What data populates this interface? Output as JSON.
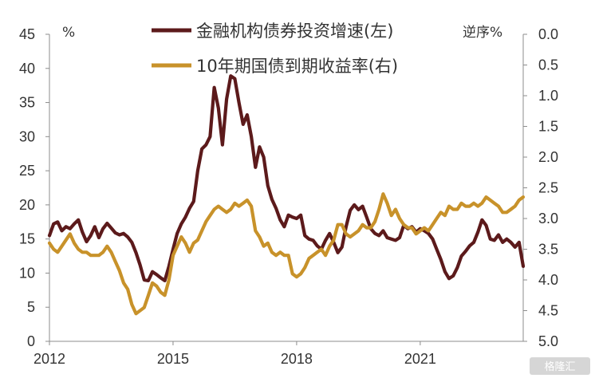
{
  "chart_data": {
    "type": "line",
    "x_ticks": [
      "2012",
      "2015",
      "2018",
      "2021"
    ],
    "x_range": [
      2012.0,
      2023.5
    ],
    "left_axis": {
      "unit_label": "%",
      "min": 0,
      "max": 45,
      "ticks": [
        "45",
        "40",
        "35",
        "30",
        "25",
        "20",
        "15",
        "10",
        "5",
        "0"
      ]
    },
    "right_axis": {
      "unit_label": "逆序%",
      "inverted": true,
      "min": 0.0,
      "max": 5.0,
      "ticks": [
        "0.0",
        "0.5",
        "1.0",
        "1.5",
        "2.0",
        "2.5",
        "3.0",
        "3.5",
        "4.0",
        "4.5",
        "5.0"
      ]
    },
    "legend": [
      {
        "label": "金融机构债券投资增速(左)",
        "color": "#5c1a1b"
      },
      {
        "label": "10年期国债到期收益率(右)",
        "color": "#c8922a"
      }
    ],
    "series": [
      {
        "name": "金融机构债券投资增速(左)",
        "axis": "left",
        "color": "#5c1a1b",
        "points": [
          [
            2012.0,
            15.5
          ],
          [
            2012.1,
            17.2
          ],
          [
            2012.2,
            17.5
          ],
          [
            2012.3,
            16.2
          ],
          [
            2012.4,
            16.8
          ],
          [
            2012.5,
            16.5
          ],
          [
            2012.6,
            17.2
          ],
          [
            2012.7,
            17.8
          ],
          [
            2012.8,
            16.0
          ],
          [
            2012.9,
            14.6
          ],
          [
            2013.0,
            15.5
          ],
          [
            2013.1,
            16.8
          ],
          [
            2013.2,
            15.2
          ],
          [
            2013.3,
            16.5
          ],
          [
            2013.4,
            17.3
          ],
          [
            2013.5,
            16.6
          ],
          [
            2013.6,
            15.9
          ],
          [
            2013.7,
            15.6
          ],
          [
            2013.8,
            15.8
          ],
          [
            2013.9,
            15.3
          ],
          [
            2014.0,
            14.5
          ],
          [
            2014.1,
            13.0
          ],
          [
            2014.2,
            11.2
          ],
          [
            2014.3,
            9.0
          ],
          [
            2014.4,
            8.9
          ],
          [
            2014.5,
            10.2
          ],
          [
            2014.6,
            9.8
          ],
          [
            2014.7,
            9.3
          ],
          [
            2014.8,
            8.9
          ],
          [
            2014.9,
            11.0
          ],
          [
            2015.0,
            13.5
          ],
          [
            2015.1,
            15.8
          ],
          [
            2015.2,
            17.2
          ],
          [
            2015.3,
            18.2
          ],
          [
            2015.4,
            19.5
          ],
          [
            2015.5,
            20.5
          ],
          [
            2015.6,
            25.0
          ],
          [
            2015.7,
            28.2
          ],
          [
            2015.8,
            28.8
          ],
          [
            2015.9,
            30.0
          ],
          [
            2016.0,
            37.2
          ],
          [
            2016.1,
            34.2
          ],
          [
            2016.2,
            28.8
          ],
          [
            2016.3,
            35.5
          ],
          [
            2016.4,
            38.9
          ],
          [
            2016.5,
            38.5
          ],
          [
            2016.6,
            35.0
          ],
          [
            2016.7,
            31.8
          ],
          [
            2016.8,
            33.2
          ],
          [
            2016.9,
            30.0
          ],
          [
            2017.0,
            25.5
          ],
          [
            2017.1,
            28.5
          ],
          [
            2017.2,
            27.0
          ],
          [
            2017.3,
            22.8
          ],
          [
            2017.4,
            20.8
          ],
          [
            2017.5,
            19.5
          ],
          [
            2017.6,
            17.8
          ],
          [
            2017.7,
            16.8
          ],
          [
            2017.8,
            18.5
          ],
          [
            2017.9,
            18.2
          ],
          [
            2018.0,
            18.0
          ],
          [
            2018.1,
            18.5
          ],
          [
            2018.2,
            15.5
          ],
          [
            2018.3,
            15.0
          ],
          [
            2018.4,
            14.8
          ],
          [
            2018.5,
            14.0
          ],
          [
            2018.6,
            13.5
          ],
          [
            2018.7,
            14.8
          ],
          [
            2018.8,
            15.8
          ],
          [
            2018.9,
            14.5
          ],
          [
            2019.0,
            13.0
          ],
          [
            2019.1,
            13.8
          ],
          [
            2019.2,
            16.8
          ],
          [
            2019.3,
            19.2
          ],
          [
            2019.4,
            20.0
          ],
          [
            2019.5,
            19.3
          ],
          [
            2019.6,
            19.8
          ],
          [
            2019.7,
            18.2
          ],
          [
            2019.8,
            16.5
          ],
          [
            2019.9,
            15.8
          ],
          [
            2020.0,
            15.5
          ],
          [
            2020.1,
            16.2
          ],
          [
            2020.2,
            15.2
          ],
          [
            2020.3,
            15.0
          ],
          [
            2020.4,
            14.8
          ],
          [
            2020.5,
            15.2
          ],
          [
            2020.6,
            17.0
          ],
          [
            2020.7,
            16.5
          ],
          [
            2020.8,
            16.8
          ],
          [
            2020.9,
            16.0
          ],
          [
            2021.0,
            16.5
          ],
          [
            2021.1,
            16.2
          ],
          [
            2021.2,
            15.8
          ],
          [
            2021.3,
            15.0
          ],
          [
            2021.4,
            13.5
          ],
          [
            2021.5,
            12.0
          ],
          [
            2021.6,
            10.2
          ],
          [
            2021.7,
            9.2
          ],
          [
            2021.8,
            9.6
          ],
          [
            2021.9,
            10.8
          ],
          [
            2022.0,
            12.5
          ],
          [
            2022.1,
            13.2
          ],
          [
            2022.2,
            14.0
          ],
          [
            2022.3,
            14.5
          ],
          [
            2022.4,
            16.0
          ],
          [
            2022.5,
            17.8
          ],
          [
            2022.6,
            17.0
          ],
          [
            2022.7,
            15.0
          ],
          [
            2022.8,
            14.8
          ],
          [
            2022.9,
            15.6
          ],
          [
            2023.0,
            14.5
          ],
          [
            2023.1,
            15.0
          ],
          [
            2023.2,
            14.5
          ],
          [
            2023.3,
            13.8
          ],
          [
            2023.4,
            14.5
          ],
          [
            2023.5,
            11.0
          ]
        ]
      },
      {
        "name": "10年期国债到期收益率(右)",
        "axis": "right",
        "color": "#c8922a",
        "points": [
          [
            2012.0,
            3.4
          ],
          [
            2012.1,
            3.5
          ],
          [
            2012.2,
            3.55
          ],
          [
            2012.3,
            3.45
          ],
          [
            2012.4,
            3.35
          ],
          [
            2012.5,
            3.25
          ],
          [
            2012.6,
            3.4
          ],
          [
            2012.7,
            3.5
          ],
          [
            2012.8,
            3.55
          ],
          [
            2012.9,
            3.55
          ],
          [
            2013.0,
            3.6
          ],
          [
            2013.1,
            3.6
          ],
          [
            2013.2,
            3.6
          ],
          [
            2013.3,
            3.55
          ],
          [
            2013.4,
            3.45
          ],
          [
            2013.5,
            3.55
          ],
          [
            2013.6,
            3.7
          ],
          [
            2013.7,
            3.85
          ],
          [
            2013.8,
            4.05
          ],
          [
            2013.9,
            4.15
          ],
          [
            2014.0,
            4.4
          ],
          [
            2014.1,
            4.55
          ],
          [
            2014.2,
            4.5
          ],
          [
            2014.3,
            4.45
          ],
          [
            2014.4,
            4.25
          ],
          [
            2014.5,
            4.05
          ],
          [
            2014.6,
            4.1
          ],
          [
            2014.7,
            4.2
          ],
          [
            2014.8,
            4.25
          ],
          [
            2014.9,
            4.0
          ],
          [
            2015.0,
            3.6
          ],
          [
            2015.1,
            3.45
          ],
          [
            2015.2,
            3.3
          ],
          [
            2015.3,
            3.4
          ],
          [
            2015.4,
            3.55
          ],
          [
            2015.5,
            3.4
          ],
          [
            2015.6,
            3.35
          ],
          [
            2015.7,
            3.2
          ],
          [
            2015.8,
            3.05
          ],
          [
            2015.9,
            2.95
          ],
          [
            2016.0,
            2.85
          ],
          [
            2016.1,
            2.8
          ],
          [
            2016.2,
            2.85
          ],
          [
            2016.3,
            2.9
          ],
          [
            2016.4,
            2.85
          ],
          [
            2016.5,
            2.75
          ],
          [
            2016.6,
            2.8
          ],
          [
            2016.7,
            2.75
          ],
          [
            2016.8,
            2.7
          ],
          [
            2016.9,
            2.8
          ],
          [
            2017.0,
            3.2
          ],
          [
            2017.1,
            3.3
          ],
          [
            2017.2,
            3.45
          ],
          [
            2017.3,
            3.4
          ],
          [
            2017.4,
            3.55
          ],
          [
            2017.5,
            3.6
          ],
          [
            2017.6,
            3.55
          ],
          [
            2017.7,
            3.6
          ],
          [
            2017.8,
            3.6
          ],
          [
            2017.9,
            3.9
          ],
          [
            2018.0,
            3.95
          ],
          [
            2018.1,
            3.9
          ],
          [
            2018.2,
            3.8
          ],
          [
            2018.3,
            3.65
          ],
          [
            2018.4,
            3.6
          ],
          [
            2018.5,
            3.55
          ],
          [
            2018.6,
            3.5
          ],
          [
            2018.7,
            3.6
          ],
          [
            2018.8,
            3.45
          ],
          [
            2018.9,
            3.35
          ],
          [
            2019.0,
            3.1
          ],
          [
            2019.1,
            3.1
          ],
          [
            2019.2,
            3.25
          ],
          [
            2019.3,
            3.3
          ],
          [
            2019.4,
            3.25
          ],
          [
            2019.5,
            3.2
          ],
          [
            2019.6,
            3.1
          ],
          [
            2019.7,
            3.15
          ],
          [
            2019.8,
            3.15
          ],
          [
            2019.9,
            3.05
          ],
          [
            2020.0,
            2.85
          ],
          [
            2020.1,
            2.6
          ],
          [
            2020.2,
            2.75
          ],
          [
            2020.3,
            2.95
          ],
          [
            2020.4,
            2.85
          ],
          [
            2020.5,
            3.0
          ],
          [
            2020.6,
            3.1
          ],
          [
            2020.7,
            3.15
          ],
          [
            2020.8,
            3.15
          ],
          [
            2020.9,
            3.25
          ],
          [
            2021.0,
            3.2
          ],
          [
            2021.1,
            3.15
          ],
          [
            2021.2,
            3.2
          ],
          [
            2021.3,
            3.1
          ],
          [
            2021.4,
            3.0
          ],
          [
            2021.5,
            2.9
          ],
          [
            2021.6,
            2.95
          ],
          [
            2021.7,
            2.8
          ],
          [
            2021.8,
            2.85
          ],
          [
            2021.9,
            2.85
          ],
          [
            2022.0,
            2.75
          ],
          [
            2022.1,
            2.8
          ],
          [
            2022.2,
            2.8
          ],
          [
            2022.3,
            2.75
          ],
          [
            2022.4,
            2.8
          ],
          [
            2022.5,
            2.75
          ],
          [
            2022.6,
            2.65
          ],
          [
            2022.7,
            2.7
          ],
          [
            2022.8,
            2.75
          ],
          [
            2022.9,
            2.8
          ],
          [
            2023.0,
            2.9
          ],
          [
            2023.1,
            2.9
          ],
          [
            2023.2,
            2.85
          ],
          [
            2023.3,
            2.8
          ],
          [
            2023.4,
            2.7
          ],
          [
            2023.5,
            2.65
          ]
        ]
      }
    ]
  },
  "watermark": {
    "text": "格隆汇"
  }
}
